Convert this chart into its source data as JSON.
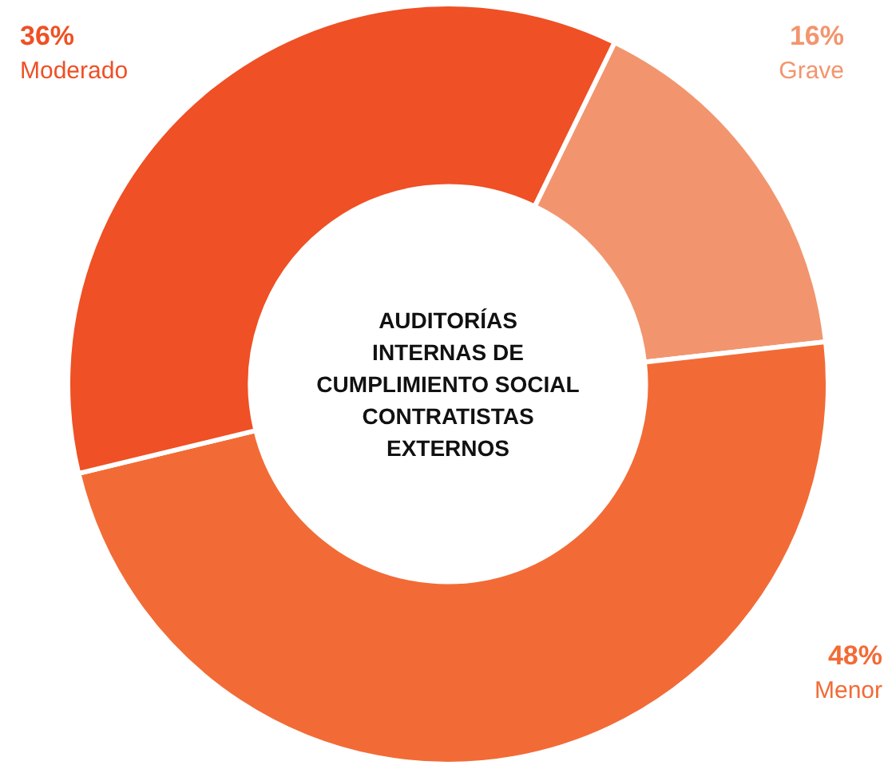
{
  "chart_data": {
    "type": "donut",
    "title": "AUDITORÍAS\nINTERNAS DE\nCUMPLIMIENTO SOCIAL\nCONTRATISTAS\nEXTERNOS",
    "categories": [
      "Grave",
      "Menor",
      "Moderado"
    ],
    "values": [
      16,
      48,
      36
    ],
    "colors": [
      "#f2956e",
      "#f26b36",
      "#ef5025"
    ],
    "value_labels": [
      "16%",
      "48%",
      "36%"
    ]
  }
}
